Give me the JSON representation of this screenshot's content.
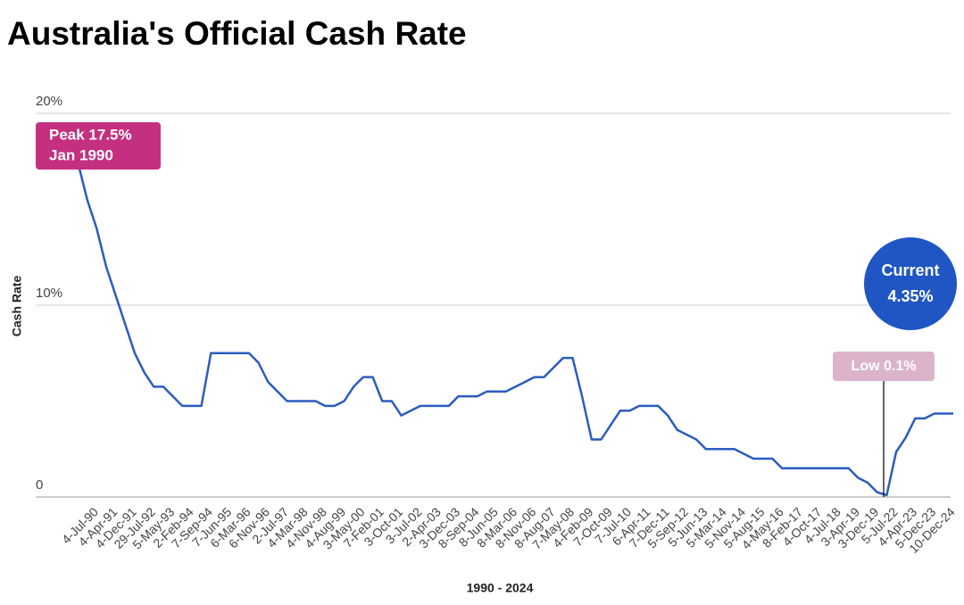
{
  "chart_data": {
    "type": "line",
    "title": "Australia's Official Cash Rate",
    "y_label": "Cash Rate",
    "x_label": "1990 - 2024",
    "categories": [
      null,
      null,
      "4-Jul-90",
      null,
      "4-Apr-91",
      null,
      "4-Dec-91",
      null,
      "29-Jul-92",
      null,
      "5-May-93",
      null,
      "2-Feb-94",
      null,
      "7-Sep-94",
      null,
      "7-Jun-95",
      null,
      "6-Mar-96",
      null,
      "6-Nov-96",
      null,
      "2-Jul-97",
      null,
      "4-Mar-98",
      null,
      "4-Nov-98",
      null,
      "4-Aug-99",
      null,
      "3-May-00",
      null,
      "7-Feb-01",
      null,
      "3-Oct-01",
      null,
      "3-Jul-02",
      null,
      "2-Apr-03",
      null,
      "3-Dec-03",
      null,
      "8-Sep-04",
      null,
      "8-Jun-05",
      null,
      "8-Mar-06",
      null,
      "8-Nov-06",
      null,
      "8-Aug-07",
      null,
      "7-May-08",
      null,
      "4-Feb-09",
      null,
      "7-Oct-09",
      null,
      "7-Jul-10",
      null,
      "6-Apr-11",
      null,
      "7-Dec-11",
      null,
      "5-Sep-12",
      null,
      "5-Jun-13",
      null,
      "5-Mar-14",
      null,
      "5-Nov-14",
      null,
      "5-Aug-15",
      null,
      "4-May-16",
      null,
      "8-Feb-17",
      null,
      "4-Oct-17",
      null,
      "4-Jul-18",
      null,
      "3-Apr-19",
      null,
      "3-Dec-19",
      null,
      "5-Jul-22",
      null,
      "4-Apr-23",
      null,
      "5-Dec-23",
      null,
      "10-Dec-24"
    ],
    "values": [
      17.5,
      15.5,
      14,
      12,
      10.5,
      9,
      7.5,
      6.5,
      5.75,
      5.75,
      5.25,
      4.75,
      4.75,
      4.75,
      7.5,
      7.5,
      7.5,
      7.5,
      7.5,
      7.0,
      6.0,
      5.5,
      5.0,
      5.0,
      5.0,
      5.0,
      4.75,
      4.75,
      5.0,
      5.75,
      6.25,
      6.25,
      5.0,
      5.0,
      4.25,
      4.5,
      4.75,
      4.75,
      4.75,
      4.75,
      5.25,
      5.25,
      5.25,
      5.5,
      5.5,
      5.5,
      5.75,
      6.0,
      6.25,
      6.25,
      6.75,
      7.25,
      7.25,
      5.25,
      3.0,
      3.0,
      3.75,
      4.5,
      4.5,
      4.75,
      4.75,
      4.75,
      4.25,
      3.5,
      3.25,
      3.0,
      2.5,
      2.5,
      2.5,
      2.5,
      2.25,
      2.0,
      2.0,
      2.0,
      1.5,
      1.5,
      1.5,
      1.5,
      1.5,
      1.5,
      1.5,
      1.5,
      1.0,
      0.75,
      0.25,
      0.1,
      2.35,
      3.1,
      4.1,
      4.1,
      4.35,
      4.35,
      4.35
    ],
    "color": "#2b5cbf",
    "ylim": [
      0,
      20
    ],
    "yticks": [
      0,
      {
        "value": 10,
        "label": "10%"
      },
      {
        "value": 20,
        "label": "20%"
      }
    ],
    "grid": true,
    "annotations": [
      {
        "lines": [
          "Peak 17.5%",
          "Jan 1990"
        ],
        "color": "#c4307f"
      },
      {
        "lines": [
          "Current",
          "4.35%"
        ],
        "color": "#1f56c3"
      },
      {
        "lines": [
          "Low 0.1%"
        ],
        "color": "#dbb4cb"
      }
    ]
  }
}
